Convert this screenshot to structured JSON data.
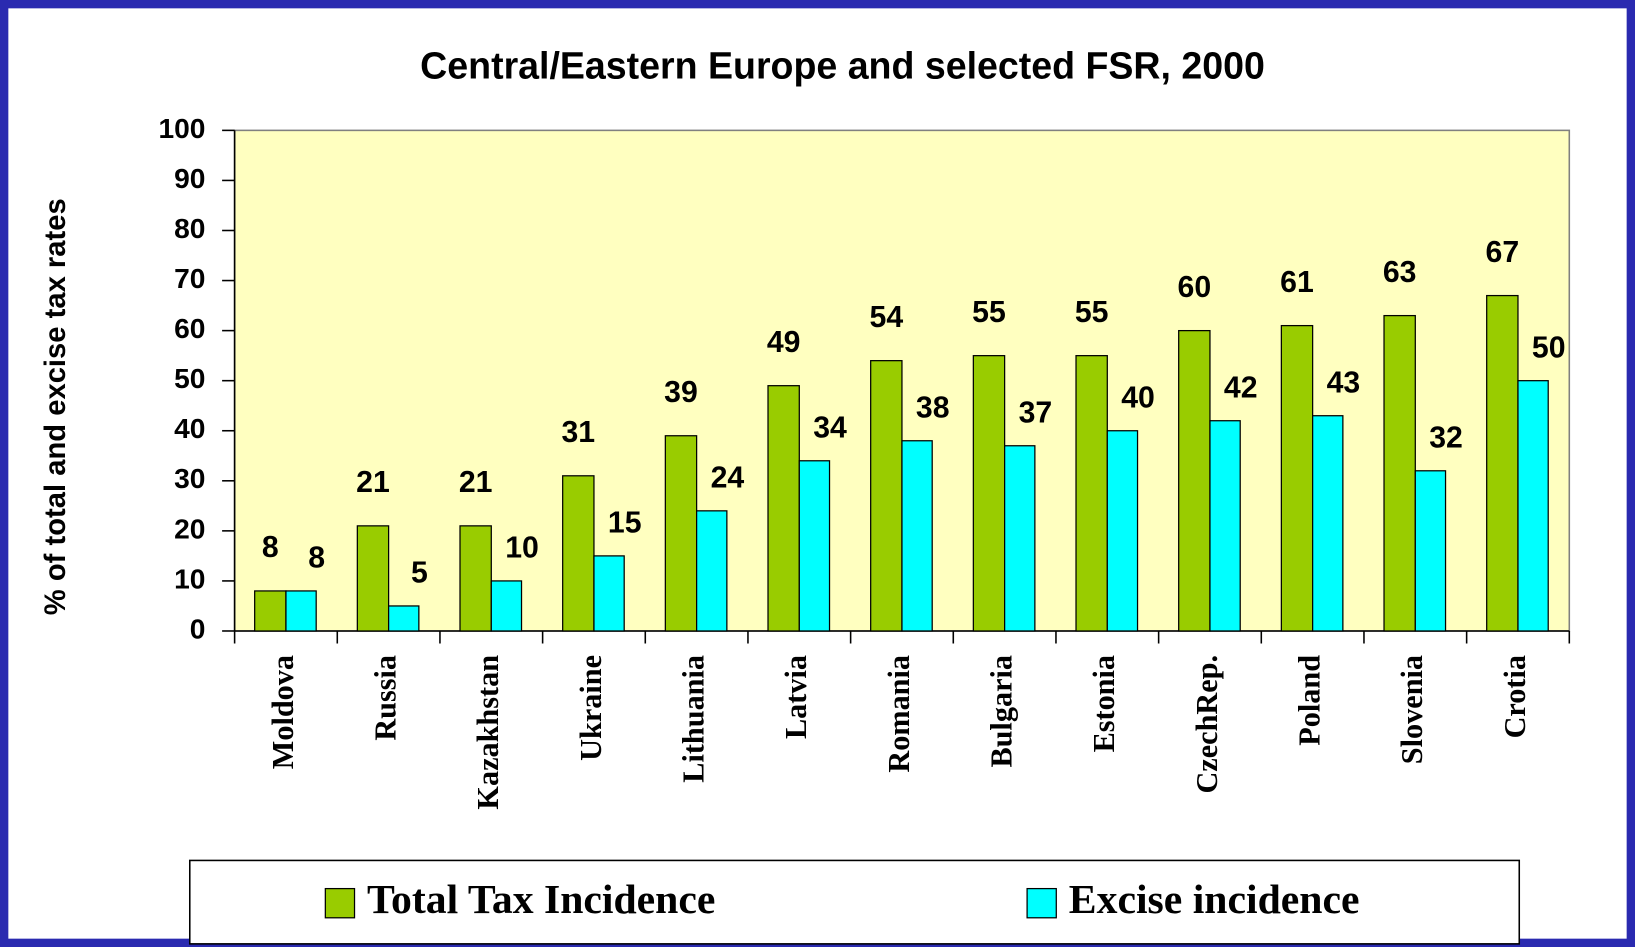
{
  "chart_data": {
    "type": "bar",
    "title": "Central/Eastern Europe and selected FSR, 2000",
    "y_label": "% of total and excise tax rates",
    "categories": [
      "Moldova",
      "Russia",
      "Kazakhstan",
      "Ukraine",
      "Lithuania",
      "Latvia",
      "Romania",
      "Bulgaria",
      "Estonia",
      "CzechRep.",
      "Poland",
      "Slovenia",
      "Crotia"
    ],
    "series": [
      {
        "name": "Total Tax Incidence",
        "color": "#99cc00",
        "values": [
          8,
          21,
          21,
          31,
          39,
          49,
          54,
          55,
          55,
          60,
          61,
          63,
          67
        ]
      },
      {
        "name": "Excise incidence",
        "color": "#00ffff",
        "values": [
          8,
          5,
          10,
          15,
          24,
          34,
          38,
          37,
          40,
          42,
          43,
          32,
          50
        ]
      }
    ],
    "ylim": [
      0,
      100
    ],
    "yticks": [
      0,
      10,
      20,
      30,
      40,
      50,
      60,
      70,
      80,
      90,
      100
    ],
    "plot_background": "#ffffc0",
    "legend": "bottom"
  }
}
